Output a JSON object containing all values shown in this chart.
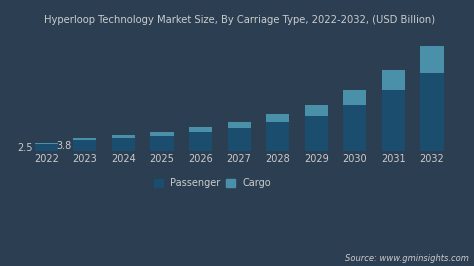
{
  "title": "Hyperloop Technology Market Size, By Carriage Type, 2022-2032, (USD Billion)",
  "years": [
    2022,
    2023,
    2024,
    2025,
    2026,
    2027,
    2028,
    2029,
    2030,
    2031,
    2032
  ],
  "passenger": [
    1.9,
    3.0,
    3.5,
    4.2,
    5.2,
    6.3,
    7.8,
    9.5,
    12.5,
    16.5,
    21.0
  ],
  "cargo": [
    0.35,
    0.55,
    0.75,
    1.0,
    1.2,
    1.6,
    2.2,
    2.8,
    3.8,
    5.2,
    7.0
  ],
  "passenger_color": "#1b4d6e",
  "cargo_color": "#4a90a8",
  "annotations_pos": {
    "2022": "2.5",
    "2023": "3.8"
  },
  "background_color": "#2b3e52",
  "plot_bg_color": "#2b3e52",
  "text_color": "#cccccc",
  "legend_labels": [
    "Passenger",
    "Cargo"
  ],
  "source_text": "Source: www.gminsights.com",
  "title_fontsize": 7.2,
  "tick_fontsize": 7,
  "legend_fontsize": 7,
  "source_fontsize": 6,
  "ylim": [
    0,
    32
  ],
  "bar_width": 0.6
}
